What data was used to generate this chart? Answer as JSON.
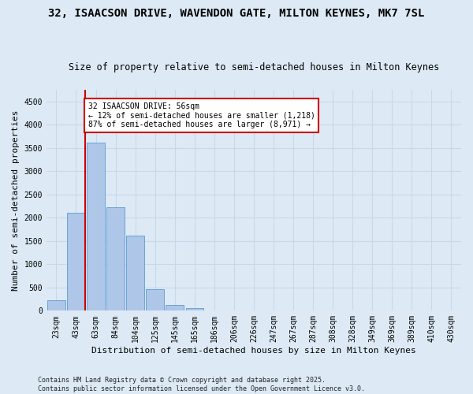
{
  "title": "32, ISAACSON DRIVE, WAVENDON GATE, MILTON KEYNES, MK7 7SL",
  "subtitle": "Size of property relative to semi-detached houses in Milton Keynes",
  "xlabel": "Distribution of semi-detached houses by size in Milton Keynes",
  "ylabel": "Number of semi-detached properties",
  "categories": [
    "23sqm",
    "43sqm",
    "63sqm",
    "84sqm",
    "104sqm",
    "125sqm",
    "145sqm",
    "165sqm",
    "186sqm",
    "206sqm",
    "226sqm",
    "247sqm",
    "267sqm",
    "287sqm",
    "308sqm",
    "328sqm",
    "349sqm",
    "369sqm",
    "389sqm",
    "410sqm",
    "430sqm"
  ],
  "values": [
    230,
    2100,
    3620,
    2220,
    1620,
    460,
    130,
    60,
    0,
    0,
    0,
    0,
    0,
    0,
    0,
    0,
    0,
    0,
    0,
    0,
    0
  ],
  "bar_color": "#aec6e8",
  "bar_edge_color": "#5b9bd5",
  "grid_color": "#c8d8ea",
  "bg_color": "#ddeaf5",
  "annotation_text": "32 ISAACSON DRIVE: 56sqm\n← 12% of semi-detached houses are smaller (1,218)\n87% of semi-detached houses are larger (8,971) →",
  "vline_color": "#cc0000",
  "annotation_box_color": "#ffffff",
  "annotation_box_edge_color": "#cc0000",
  "ylim": [
    0,
    4750
  ],
  "yticks": [
    0,
    500,
    1000,
    1500,
    2000,
    2500,
    3000,
    3500,
    4000,
    4500
  ],
  "footer": "Contains HM Land Registry data © Crown copyright and database right 2025.\nContains public sector information licensed under the Open Government Licence v3.0.",
  "title_fontsize": 10,
  "subtitle_fontsize": 8.5,
  "tick_fontsize": 7,
  "label_fontsize": 8,
  "footer_fontsize": 6,
  "annotation_fontsize": 7
}
